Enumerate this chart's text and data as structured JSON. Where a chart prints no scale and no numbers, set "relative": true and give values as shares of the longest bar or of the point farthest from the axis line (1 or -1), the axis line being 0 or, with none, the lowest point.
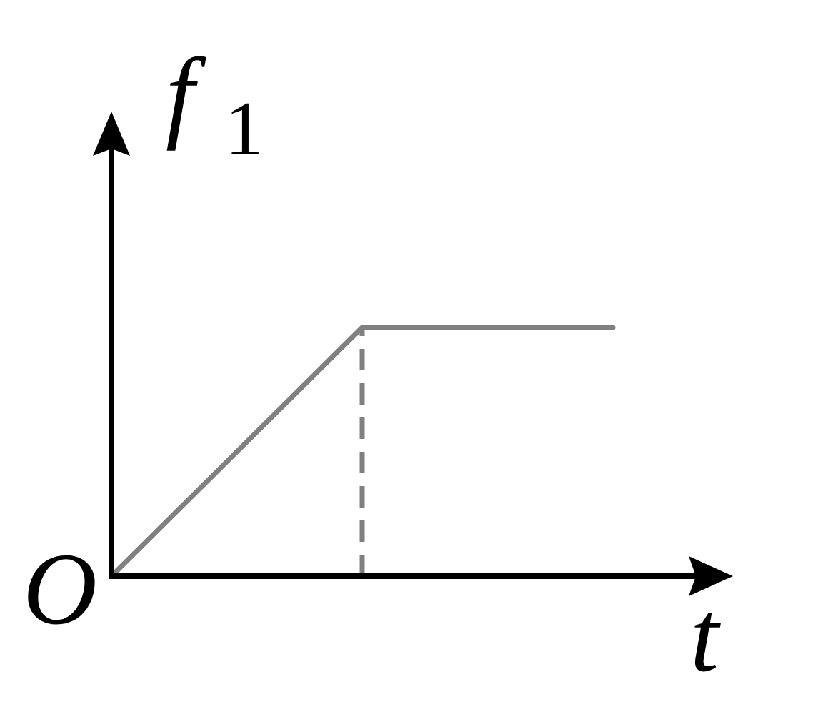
{
  "chart_data": {
    "type": "line",
    "xlabel": "t",
    "ylabel": "f₁",
    "annotations": [
      "O"
    ],
    "categories": [
      null,
      null,
      null
    ],
    "series": [
      {
        "color": "#808080",
        "values": [
          0,
          1,
          1
        ]
      }
    ],
    "relative": true
  }
}
